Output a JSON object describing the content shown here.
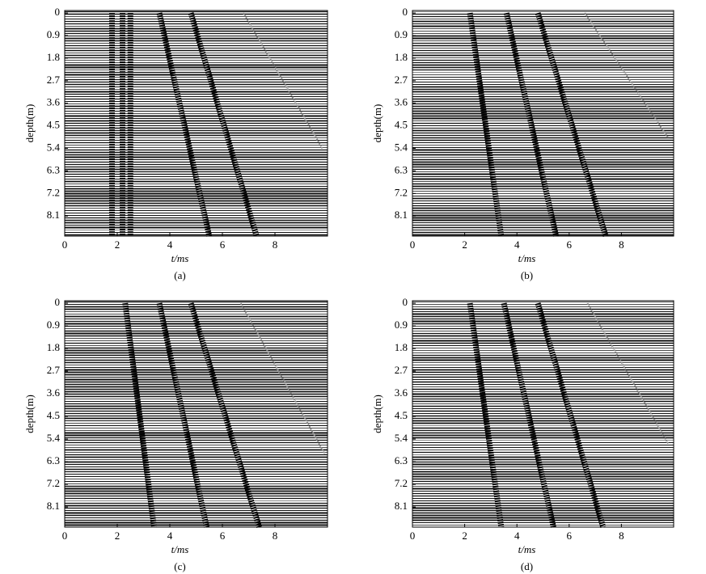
{
  "chart_data": [
    {
      "type": "line",
      "caption": "(a)",
      "xlabel": "t/ms",
      "ylabel": "depth(m)",
      "xlim": [
        0,
        10
      ],
      "ylim": [
        -0.1,
        8.9
      ],
      "xticks": [
        0,
        2,
        4,
        6,
        8
      ],
      "yticks": [
        0,
        0.9,
        1.8,
        2.7,
        3.6,
        4.5,
        5.4,
        6.3,
        7.2,
        8.1
      ],
      "series": [
        {
          "color": "#000000",
          "x": [
            1.8,
            1.8
          ],
          "values": [
            0,
            8.9
          ]
        },
        {
          "color": "#000000",
          "x": [
            2.2,
            2.2
          ],
          "values": [
            0,
            8.9
          ]
        },
        {
          "color": "#000000",
          "x": [
            2.5,
            2.5
          ],
          "values": [
            0,
            8.9
          ]
        },
        {
          "color": "#000000",
          "x": [
            3.6,
            5.5
          ],
          "values": [
            0,
            8.9
          ]
        },
        {
          "color": "#000000",
          "x": [
            4.8,
            7.3
          ],
          "values": [
            0,
            8.9
          ]
        },
        {
          "color": "#888888",
          "x": [
            6.8,
            9.8
          ],
          "values": [
            0,
            5.4
          ]
        }
      ]
    },
    {
      "type": "line",
      "caption": "(b)",
      "xlabel": "t/ms",
      "ylabel": "depth(m)",
      "xlim": [
        0,
        10
      ],
      "ylim": [
        -0.1,
        8.9
      ],
      "xticks": [
        0,
        2,
        4,
        6,
        8
      ],
      "yticks": [
        0,
        0.9,
        1.8,
        2.7,
        3.6,
        4.5,
        5.4,
        6.3,
        7.2,
        8.1
      ],
      "series": [
        {
          "color": "#000000",
          "x": [
            2.2,
            3.4
          ],
          "values": [
            0,
            8.9
          ]
        },
        {
          "color": "#000000",
          "x": [
            3.6,
            5.5
          ],
          "values": [
            0,
            8.9
          ]
        },
        {
          "color": "#000000",
          "x": [
            4.8,
            7.4
          ],
          "values": [
            0,
            8.9
          ]
        },
        {
          "color": "#888888",
          "x": [
            6.6,
            9.8
          ],
          "values": [
            0,
            5.0
          ]
        }
      ]
    },
    {
      "type": "line",
      "caption": "(c)",
      "xlabel": "t/ms",
      "ylabel": "depth(m)",
      "xlim": [
        0,
        10
      ],
      "ylim": [
        -0.1,
        8.9
      ],
      "xticks": [
        0,
        2,
        4,
        6,
        8
      ],
      "yticks": [
        0,
        0.9,
        1.8,
        2.7,
        3.6,
        4.5,
        5.4,
        6.3,
        7.2,
        8.1
      ],
      "series": [
        {
          "color": "#000000",
          "x": [
            2.3,
            3.4
          ],
          "values": [
            0,
            8.9
          ]
        },
        {
          "color": "#000000",
          "x": [
            3.6,
            5.4
          ],
          "values": [
            0,
            8.9
          ]
        },
        {
          "color": "#000000",
          "x": [
            4.8,
            7.4
          ],
          "values": [
            0,
            8.9
          ]
        },
        {
          "color": "#888888",
          "x": [
            6.7,
            9.9
          ],
          "values": [
            0,
            6.0
          ]
        }
      ]
    },
    {
      "type": "line",
      "caption": "(d)",
      "xlabel": "t/ms",
      "ylabel": "depth(m)",
      "xlim": [
        0,
        10
      ],
      "ylim": [
        -0.1,
        8.9
      ],
      "xticks": [
        0,
        2,
        4,
        6,
        8
      ],
      "yticks": [
        0,
        0.9,
        1.8,
        2.7,
        3.6,
        4.5,
        5.4,
        6.3,
        7.2,
        8.1
      ],
      "series": [
        {
          "color": "#000000",
          "x": [
            2.2,
            3.4
          ],
          "values": [
            0,
            8.9
          ]
        },
        {
          "color": "#000000",
          "x": [
            3.5,
            5.4
          ],
          "values": [
            0,
            8.9
          ]
        },
        {
          "color": "#000000",
          "x": [
            4.8,
            7.3
          ],
          "values": [
            0,
            8.9
          ]
        },
        {
          "color": "#888888",
          "x": [
            6.7,
            9.8
          ],
          "values": [
            0,
            5.6
          ]
        }
      ]
    }
  ]
}
